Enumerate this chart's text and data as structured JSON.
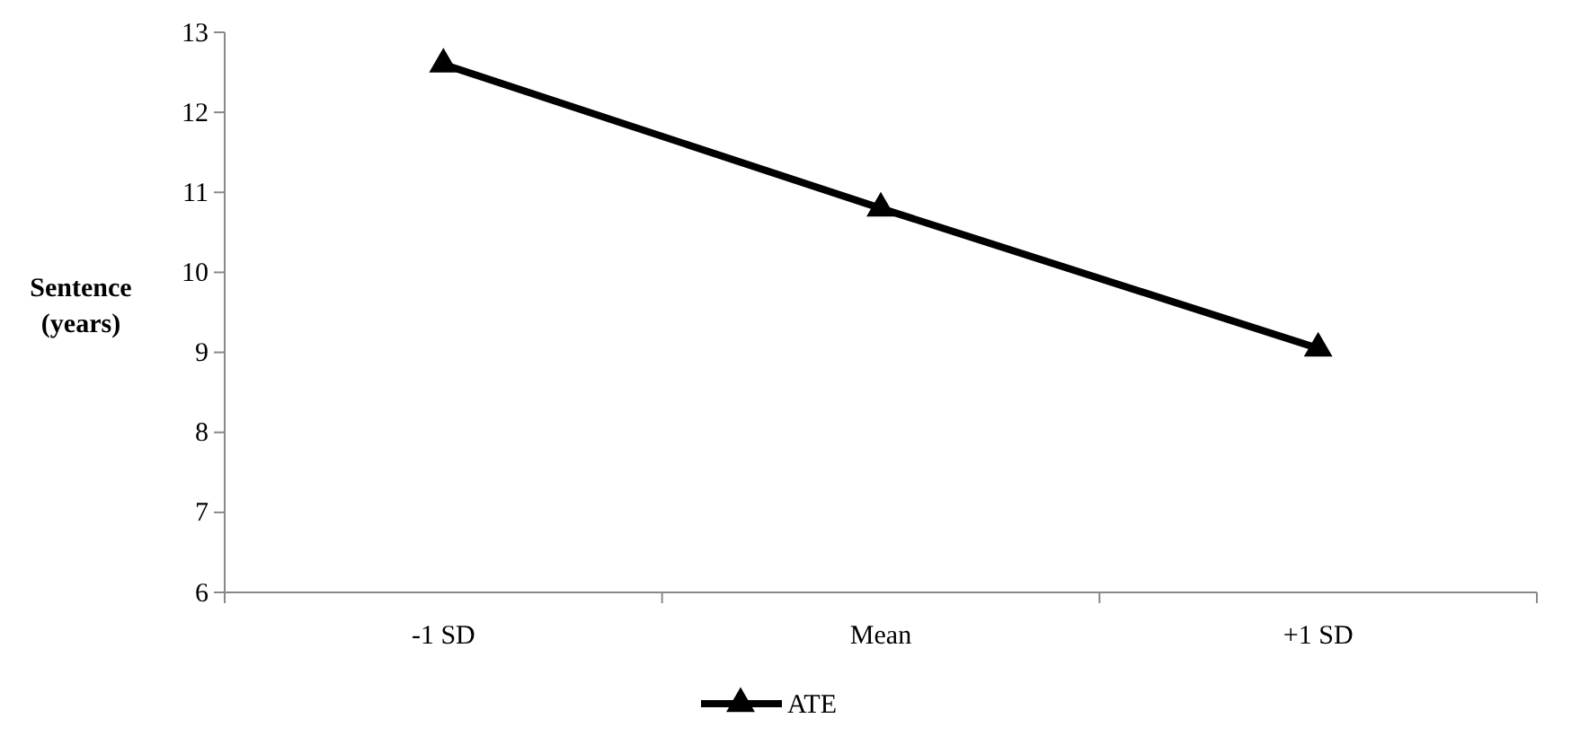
{
  "chart_data": {
    "type": "line",
    "ylabel": "Sentence (years)",
    "categories": [
      "-1 SD",
      "Mean",
      "+1 SD"
    ],
    "series": [
      {
        "name": "ATE",
        "color": "#000000",
        "values": [
          12.6,
          10.8,
          9.05
        ]
      }
    ],
    "ylim": [
      6,
      13
    ],
    "yticks": [
      6,
      7,
      8,
      9,
      10,
      11,
      12,
      13
    ],
    "marker": "triangle",
    "line_style": "solid",
    "legend": "bottom",
    "grid": false
  }
}
